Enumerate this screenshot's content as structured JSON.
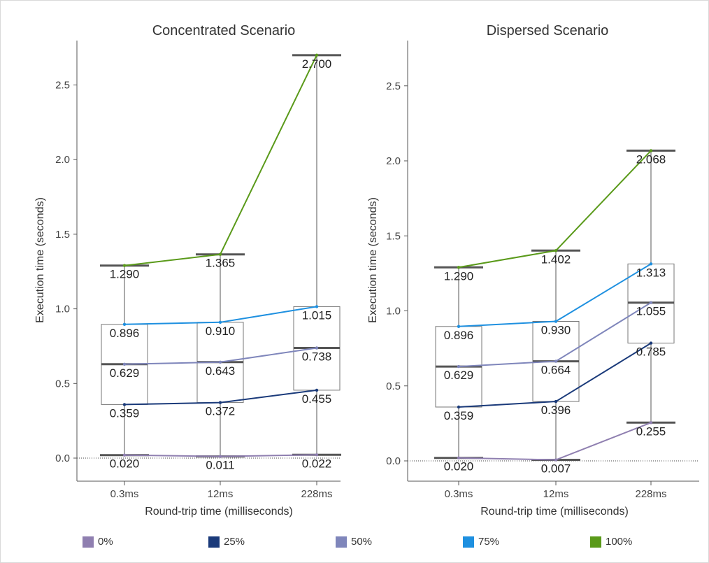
{
  "chart_data": [
    {
      "type": "box",
      "title": "Concentrated Scenario",
      "xlabel": "Round-trip time (milliseconds)",
      "ylabel": "Execution time (seconds)",
      "ylim": [
        -0.15,
        2.8
      ],
      "yticks": [
        "0.0",
        "0.5",
        "1.0",
        "1.5",
        "2.0",
        "2.5"
      ],
      "categories": [
        "0.3ms",
        "12ms",
        "228ms"
      ],
      "series": [
        {
          "name": "0%",
          "values": [
            0.02,
            0.011,
            0.022
          ],
          "labels": [
            "0.020",
            "0.011",
            "0.022"
          ]
        },
        {
          "name": "25%",
          "values": [
            0.359,
            0.372,
            0.455
          ],
          "labels": [
            "0.359",
            "0.372",
            "0.455"
          ]
        },
        {
          "name": "50%",
          "values": [
            0.629,
            0.643,
            0.738
          ],
          "labels": [
            "0.629",
            "0.643",
            "0.738"
          ]
        },
        {
          "name": "75%",
          "values": [
            0.896,
            0.91,
            1.015
          ],
          "labels": [
            "0.896",
            "0.910",
            "1.015"
          ]
        },
        {
          "name": "100%",
          "values": [
            1.29,
            1.365,
            2.7
          ],
          "labels": [
            "1.290",
            "1.365",
            "2.700"
          ]
        }
      ]
    },
    {
      "type": "box",
      "title": "Dispersed Scenario",
      "xlabel": "Round-trip time (milliseconds)",
      "ylabel": "Execution time (seconds)",
      "ylim": [
        -0.15,
        2.8
      ],
      "yticks": [
        "0.0",
        "0.5",
        "1.0",
        "1.5",
        "2.0",
        "2.5"
      ],
      "categories": [
        "0.3ms",
        "12ms",
        "228ms"
      ],
      "series": [
        {
          "name": "0%",
          "values": [
            0.02,
            0.007,
            0.255
          ],
          "labels": [
            "0.020",
            "0.007",
            "0.255"
          ]
        },
        {
          "name": "25%",
          "values": [
            0.359,
            0.396,
            0.785
          ],
          "labels": [
            "0.359",
            "0.396",
            "0.785"
          ]
        },
        {
          "name": "50%",
          "values": [
            0.629,
            0.664,
            1.055
          ],
          "labels": [
            "0.629",
            "0.664",
            "1.055"
          ]
        },
        {
          "name": "75%",
          "values": [
            0.896,
            0.93,
            1.313
          ],
          "labels": [
            "0.896",
            "0.930",
            "1.313"
          ]
        },
        {
          "name": "100%",
          "values": [
            1.29,
            1.402,
            2.068
          ],
          "labels": [
            "1.290",
            "1.402",
            "2.068"
          ]
        }
      ]
    }
  ],
  "legend": [
    {
      "label": "0%",
      "color": "#8f7fb0"
    },
    {
      "label": "25%",
      "color": "#1a3a7a"
    },
    {
      "label": "50%",
      "color": "#7f86bb"
    },
    {
      "label": "75%",
      "color": "#1e90e0"
    },
    {
      "label": "100%",
      "color": "#5a9a1a"
    }
  ]
}
